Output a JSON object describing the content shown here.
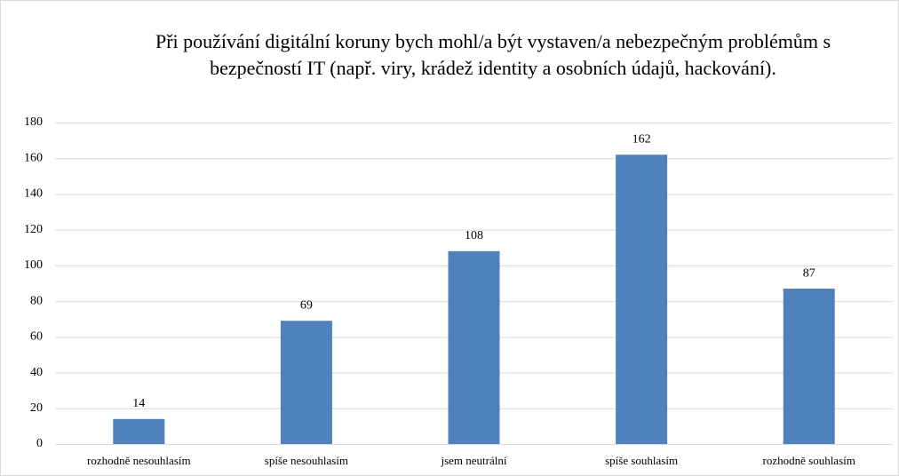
{
  "chart_data": {
    "type": "bar",
    "title": "Při používání digitální koruny bych mohl/a být vystaven/a nebezpečným problémům s bezpečností IT (např. viry, krádež identity a osobních údajů, hackování).",
    "categories": [
      "rozhodně nesouhlasím",
      "spíše nesouhlasím",
      "jsem neutrální",
      "spíše souhlasím",
      "rozhodně souhlasím"
    ],
    "values": [
      14,
      69,
      108,
      162,
      87
    ],
    "color": "#4f81bd",
    "ylim": [
      0,
      180
    ],
    "yticks": [
      0,
      20,
      40,
      60,
      80,
      100,
      120,
      140,
      160,
      180
    ],
    "grid": true
  }
}
